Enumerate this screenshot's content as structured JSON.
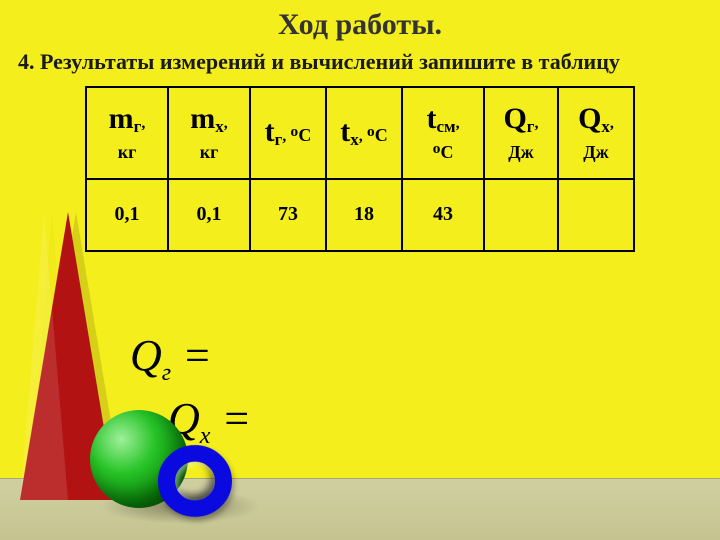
{
  "title": "Ход работы.",
  "subtitle": "4. Результаты измерений и вычислений запишите в таблицу",
  "table": {
    "headers": [
      {
        "symbol": "m",
        "subscript": "г",
        "suffix": ",",
        "unit_block": "кг"
      },
      {
        "symbol": "m",
        "subscript": "х",
        "suffix": ",",
        "unit_block": "кг"
      },
      {
        "symbol": "t",
        "subscript": "г",
        "suffix": ",",
        "unit_inline": "ᴼС"
      },
      {
        "symbol": "t",
        "subscript": "х",
        "suffix": ",",
        "unit_inline": "ᴼС"
      },
      {
        "symbol": "t",
        "subscript": "см",
        "suffix": ",",
        "unit_block": "ᴼС"
      },
      {
        "symbol": "Q",
        "subscript": "г",
        "suffix": ",",
        "unit_block": "Дж"
      },
      {
        "symbol": "Q",
        "subscript": "х",
        "suffix": ",",
        "unit_block": "Дж"
      }
    ],
    "values": [
      "0,1",
      "0,1",
      "73",
      "18",
      "43",
      "",
      ""
    ]
  },
  "formulas": {
    "line1": {
      "sym": "Q",
      "sub": "г",
      "eq": " ="
    },
    "line2": {
      "sym": "Q",
      "sub": "х",
      "eq": " ="
    }
  },
  "colors": {
    "background": "#f4ee1c",
    "table_border": "#000000",
    "text": "#000000",
    "cone": "#b31212",
    "sphere": "#28c428",
    "torus": "#0a0ae0",
    "floor": "#c9c898"
  }
}
